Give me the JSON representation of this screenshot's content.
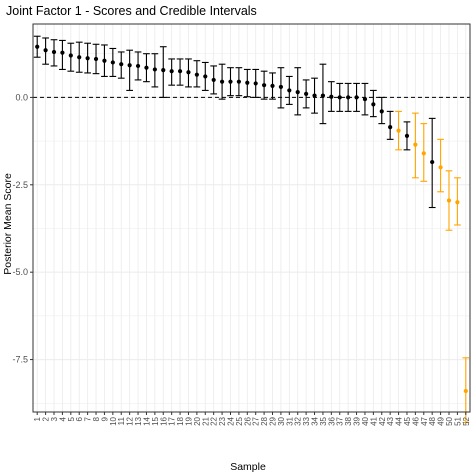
{
  "chart_data": {
    "type": "scatter",
    "title": "Joint Factor 1 - Scores and Credible Intervals",
    "xlabel": "Sample",
    "ylabel": "Posterior Mean Score",
    "ylim": [
      -9.0,
      2.1
    ],
    "y_ticks": [
      {
        "value": 0,
        "label": "0.0"
      },
      {
        "value": -2.5,
        "label": "-2.5"
      },
      {
        "value": -5,
        "label": "-5.0"
      },
      {
        "value": -7.5,
        "label": "-7.5"
      }
    ],
    "reference_line": {
      "y": 0,
      "style": "dashed"
    },
    "grid": true,
    "legend": "none",
    "colors": {
      "black": "#000000",
      "orange": "#FFA500"
    },
    "points": [
      {
        "label": "1",
        "y": 1.45,
        "lower": 1.15,
        "upper": 1.75,
        "color": "black"
      },
      {
        "label": "2",
        "y": 1.35,
        "lower": 0.95,
        "upper": 1.7,
        "color": "black"
      },
      {
        "label": "3",
        "y": 1.3,
        "lower": 0.9,
        "upper": 1.65,
        "color": "black"
      },
      {
        "label": "4",
        "y": 1.28,
        "lower": 0.8,
        "upper": 1.63,
        "color": "black"
      },
      {
        "label": "5",
        "y": 1.2,
        "lower": 0.75,
        "upper": 1.55,
        "color": "black"
      },
      {
        "label": "6",
        "y": 1.15,
        "lower": 0.72,
        "upper": 1.58,
        "color": "black"
      },
      {
        "label": "7",
        "y": 1.12,
        "lower": 0.7,
        "upper": 1.55,
        "color": "black"
      },
      {
        "label": "8",
        "y": 1.1,
        "lower": 0.68,
        "upper": 1.52,
        "color": "black"
      },
      {
        "label": "9",
        "y": 1.05,
        "lower": 0.6,
        "upper": 1.5,
        "color": "black"
      },
      {
        "label": "10",
        "y": 1.0,
        "lower": 0.6,
        "upper": 1.4,
        "color": "black"
      },
      {
        "label": "11",
        "y": 0.95,
        "lower": 0.55,
        "upper": 1.3,
        "color": "black"
      },
      {
        "label": "12",
        "y": 0.92,
        "lower": 0.2,
        "upper": 1.35,
        "color": "black"
      },
      {
        "label": "13",
        "y": 0.9,
        "lower": 0.5,
        "upper": 1.3,
        "color": "black"
      },
      {
        "label": "14",
        "y": 0.85,
        "lower": 0.45,
        "upper": 1.25,
        "color": "black"
      },
      {
        "label": "15",
        "y": 0.8,
        "lower": 0.3,
        "upper": 1.25,
        "color": "black"
      },
      {
        "label": "16",
        "y": 0.78,
        "lower": 0.0,
        "upper": 1.45,
        "color": "black"
      },
      {
        "label": "17",
        "y": 0.75,
        "lower": 0.35,
        "upper": 1.1,
        "color": "black"
      },
      {
        "label": "18",
        "y": 0.75,
        "lower": 0.35,
        "upper": 1.1,
        "color": "black"
      },
      {
        "label": "19",
        "y": 0.72,
        "lower": 0.3,
        "upper": 1.1,
        "color": "black"
      },
      {
        "label": "20",
        "y": 0.65,
        "lower": 0.3,
        "upper": 1.05,
        "color": "black"
      },
      {
        "label": "21",
        "y": 0.6,
        "lower": 0.2,
        "upper": 1.0,
        "color": "black"
      },
      {
        "label": "22",
        "y": 0.5,
        "lower": 0.1,
        "upper": 0.9,
        "color": "black"
      },
      {
        "label": "23",
        "y": 0.45,
        "lower": -0.05,
        "upper": 0.95,
        "color": "black"
      },
      {
        "label": "24",
        "y": 0.45,
        "lower": 0.05,
        "upper": 0.85,
        "color": "black"
      },
      {
        "label": "25",
        "y": 0.45,
        "lower": 0.05,
        "upper": 0.85,
        "color": "black"
      },
      {
        "label": "26",
        "y": 0.42,
        "lower": 0.02,
        "upper": 0.8,
        "color": "black"
      },
      {
        "label": "27",
        "y": 0.4,
        "lower": 0.0,
        "upper": 0.8,
        "color": "black"
      },
      {
        "label": "28",
        "y": 0.35,
        "lower": -0.05,
        "upper": 0.75,
        "color": "black"
      },
      {
        "label": "29",
        "y": 0.33,
        "lower": -0.05,
        "upper": 0.7,
        "color": "black"
      },
      {
        "label": "30",
        "y": 0.3,
        "lower": -0.3,
        "upper": 0.85,
        "color": "black"
      },
      {
        "label": "31",
        "y": 0.2,
        "lower": -0.2,
        "upper": 0.6,
        "color": "black"
      },
      {
        "label": "32",
        "y": 0.15,
        "lower": -0.5,
        "upper": 0.85,
        "color": "black"
      },
      {
        "label": "33",
        "y": 0.1,
        "lower": -0.3,
        "upper": 0.5,
        "color": "black"
      },
      {
        "label": "34",
        "y": 0.05,
        "lower": -0.45,
        "upper": 0.55,
        "color": "black"
      },
      {
        "label": "35",
        "y": 0.05,
        "lower": -0.75,
        "upper": 0.95,
        "color": "black"
      },
      {
        "label": "36",
        "y": 0.02,
        "lower": -0.4,
        "upper": 0.45,
        "color": "black"
      },
      {
        "label": "37",
        "y": 0.0,
        "lower": -0.4,
        "upper": 0.4,
        "color": "black"
      },
      {
        "label": "38",
        "y": 0.0,
        "lower": -0.4,
        "upper": 0.4,
        "color": "black"
      },
      {
        "label": "39",
        "y": 0.0,
        "lower": -0.4,
        "upper": 0.4,
        "color": "black"
      },
      {
        "label": "40",
        "y": -0.05,
        "lower": -0.5,
        "upper": 0.4,
        "color": "black"
      },
      {
        "label": "41",
        "y": -0.2,
        "lower": -0.55,
        "upper": 0.2,
        "color": "black"
      },
      {
        "label": "42",
        "y": -0.4,
        "lower": -0.75,
        "upper": 0.0,
        "color": "black"
      },
      {
        "label": "43",
        "y": -0.85,
        "lower": -1.2,
        "upper": -0.4,
        "color": "black"
      },
      {
        "label": "44",
        "y": -0.95,
        "lower": -1.5,
        "upper": -0.4,
        "color": "orange"
      },
      {
        "label": "45",
        "y": -1.1,
        "lower": -1.5,
        "upper": -0.7,
        "color": "black"
      },
      {
        "label": "46",
        "y": -1.35,
        "lower": -2.3,
        "upper": -0.45,
        "color": "orange"
      },
      {
        "label": "47",
        "y": -1.6,
        "lower": -2.4,
        "upper": -0.75,
        "color": "orange"
      },
      {
        "label": "48",
        "y": -1.85,
        "lower": -3.15,
        "upper": -0.6,
        "color": "black"
      },
      {
        "label": "49",
        "y": -2.0,
        "lower": -2.7,
        "upper": -1.2,
        "color": "orange"
      },
      {
        "label": "50",
        "y": -2.95,
        "lower": -3.8,
        "upper": -2.1,
        "color": "orange"
      },
      {
        "label": "51",
        "y": -3.0,
        "lower": -3.65,
        "upper": -2.3,
        "color": "orange"
      },
      {
        "label": "52",
        "y": -8.4,
        "lower": -9.3,
        "upper": -7.45,
        "color": "orange"
      }
    ]
  }
}
